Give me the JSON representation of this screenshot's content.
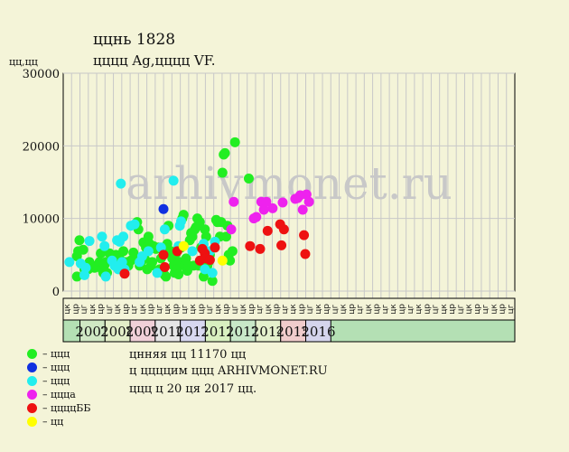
{
  "header": {
    "title": "ццнь 1828",
    "subtitle": "цццц Ag,цццц VF.",
    "y_unit": "цц,цц"
  },
  "notes": {
    "line1": "цнняя цц 11170 цц",
    "line2": "ц ццццим ццц ARHIVMONET.RU",
    "line3": "ццц ц 20 ця 2017 цц."
  },
  "watermark": "arhivmonet.ru",
  "legend": [
    {
      "label": "– ццц",
      "color": "#22ee22"
    },
    {
      "label": "– ццц",
      "color": "#1030e0"
    },
    {
      "label": "– ццц",
      "color": "#22eeee"
    },
    {
      "label": "– цццa",
      "color": "#ee22ee"
    },
    {
      "label": "– ццццББ",
      "color": "#ee1111"
    },
    {
      "label": "– цц",
      "color": "#ffff00"
    }
  ],
  "chart_data": {
    "type": "scatter",
    "ylim": [
      0,
      30000
    ],
    "y_ticks": [
      "0",
      "10000",
      "20000",
      "30000"
    ],
    "quarter_labels": [
      "цк",
      "цр",
      "цг",
      "цк",
      "цр",
      "цг",
      "цк",
      "цр",
      "цг",
      "цк",
      "цр",
      "цг",
      "цк",
      "цр",
      "цг",
      "цк",
      "цр",
      "цг",
      "цк",
      "цр",
      "цг",
      "цк",
      "цр",
      "цг",
      "цк",
      "цр",
      "цг",
      "цк",
      "цр",
      "цг",
      "цк",
      "цр",
      "цг",
      "цк",
      "цр",
      "цг",
      "цк",
      "цр",
      "цг",
      "цк",
      "цр",
      "цг",
      "цк",
      "цр",
      "цг",
      "цк",
      "цр",
      "цг",
      "цк",
      "цр",
      "цг",
      "цк",
      "цр",
      "цг"
    ],
    "years": [
      {
        "label": "2007",
        "color": "#cfe8c4"
      },
      {
        "label": "2008",
        "color": "#e2eec8"
      },
      {
        "label": "2009",
        "color": "#f0d0d8"
      },
      {
        "label": "2010",
        "color": "#e6e6e6"
      },
      {
        "label": "2011",
        "color": "#d8d8f0"
      },
      {
        "label": "2012",
        "color": "#d8f0c0"
      },
      {
        "label": "2013",
        "color": "#c8e8c8"
      },
      {
        "label": "2014",
        "color": "#e4f0cc"
      },
      {
        "label": "2015",
        "color": "#f0cccc"
      },
      {
        "label": "2016",
        "color": "#d4d4ec"
      }
    ],
    "grid": true,
    "series": [
      {
        "color": "#22ee22",
        "points": [
          [
            2006.55,
            2000
          ],
          [
            2006.55,
            4800
          ],
          [
            2006.6,
            5500
          ],
          [
            2006.65,
            7000
          ],
          [
            2006.8,
            5700
          ],
          [
            2006.85,
            3000
          ],
          [
            2007.0,
            3000
          ],
          [
            2007.05,
            4000
          ],
          [
            2007.15,
            3500
          ],
          [
            2007.25,
            3200
          ],
          [
            2007.35,
            3500
          ],
          [
            2007.45,
            4000
          ],
          [
            2007.5,
            5200
          ],
          [
            2007.55,
            3000
          ],
          [
            2007.6,
            2500
          ],
          [
            2007.65,
            3600
          ],
          [
            2007.7,
            4000
          ],
          [
            2007.75,
            2500
          ],
          [
            2007.85,
            5200
          ],
          [
            2008.0,
            4200
          ],
          [
            2008.1,
            5000
          ],
          [
            2008.15,
            3500
          ],
          [
            2008.25,
            4500
          ],
          [
            2008.4,
            5500
          ],
          [
            2008.5,
            4000
          ],
          [
            2008.6,
            3500
          ],
          [
            2008.7,
            4200
          ],
          [
            2008.8,
            5300
          ],
          [
            2008.9,
            4500
          ],
          [
            2008.95,
            9500
          ],
          [
            2009.0,
            8500
          ],
          [
            2009.05,
            3500
          ],
          [
            2009.15,
            4200
          ],
          [
            2009.2,
            6700
          ],
          [
            2009.25,
            4500
          ],
          [
            2009.3,
            6000
          ],
          [
            2009.35,
            3000
          ],
          [
            2009.4,
            7500
          ],
          [
            2009.45,
            6500
          ],
          [
            2009.5,
            3500
          ],
          [
            2009.55,
            4000
          ],
          [
            2009.6,
            6200
          ],
          [
            2009.7,
            5800
          ],
          [
            2009.8,
            6000
          ],
          [
            2009.85,
            3000
          ],
          [
            2009.9,
            4500
          ],
          [
            2010.0,
            5500
          ],
          [
            2010.05,
            2200
          ],
          [
            2010.1,
            2000
          ],
          [
            2010.15,
            6500
          ],
          [
            2010.2,
            9000
          ],
          [
            2010.3,
            5500
          ],
          [
            2010.35,
            4500
          ],
          [
            2010.4,
            3500
          ],
          [
            2010.45,
            2500
          ],
          [
            2010.5,
            5200
          ],
          [
            2010.55,
            3000
          ],
          [
            2010.6,
            2300
          ],
          [
            2010.65,
            4000
          ],
          [
            2010.7,
            6000
          ],
          [
            2010.75,
            10000
          ],
          [
            2010.8,
            10500
          ],
          [
            2010.85,
            3500
          ],
          [
            2010.9,
            4500
          ],
          [
            2010.95,
            2800
          ],
          [
            2011.0,
            3500
          ],
          [
            2011.05,
            7000
          ],
          [
            2011.1,
            8000
          ],
          [
            2011.15,
            7500
          ],
          [
            2011.2,
            3500
          ],
          [
            2011.25,
            8500
          ],
          [
            2011.3,
            8800
          ],
          [
            2011.35,
            10000
          ],
          [
            2011.4,
            3500
          ],
          [
            2011.45,
            9500
          ],
          [
            2011.5,
            6000
          ],
          [
            2011.55,
            3800
          ],
          [
            2011.6,
            2000
          ],
          [
            2011.65,
            8500
          ],
          [
            2011.7,
            7500
          ],
          [
            2011.75,
            3500
          ],
          [
            2011.8,
            4000
          ],
          [
            2011.85,
            5000
          ],
          [
            2011.95,
            1400
          ],
          [
            2012.1,
            9800
          ],
          [
            2012.15,
            9500
          ],
          [
            2012.25,
            7500
          ],
          [
            2012.3,
            9500
          ],
          [
            2012.35,
            16300
          ],
          [
            2012.4,
            18800
          ],
          [
            2012.45,
            19000
          ],
          [
            2012.5,
            7500
          ],
          [
            2012.55,
            9000
          ],
          [
            2012.6,
            5000
          ],
          [
            2012.65,
            4200
          ],
          [
            2012.75,
            5500
          ],
          [
            2012.85,
            20500
          ],
          [
            2013.4,
            15500
          ]
        ]
      },
      {
        "color": "#1030e0",
        "points": [
          [
            2010.0,
            11300
          ]
        ]
      },
      {
        "color": "#22eeee",
        "points": [
          [
            2006.25,
            4000
          ],
          [
            2006.7,
            3800
          ],
          [
            2006.85,
            2200
          ],
          [
            2006.9,
            3200
          ],
          [
            2007.05,
            6900
          ],
          [
            2007.55,
            7500
          ],
          [
            2007.65,
            6200
          ],
          [
            2007.7,
            2000
          ],
          [
            2007.95,
            4200
          ],
          [
            2008.05,
            3500
          ],
          [
            2008.15,
            7000
          ],
          [
            2008.2,
            3000
          ],
          [
            2008.25,
            6800
          ],
          [
            2008.3,
            14800
          ],
          [
            2008.35,
            4000
          ],
          [
            2008.4,
            7500
          ],
          [
            2008.45,
            3000
          ],
          [
            2008.7,
            9000
          ],
          [
            2008.85,
            9200
          ],
          [
            2009.05,
            4000
          ],
          [
            2009.15,
            4800
          ],
          [
            2009.4,
            5500
          ],
          [
            2009.75,
            2500
          ],
          [
            2009.9,
            6000
          ],
          [
            2010.05,
            8500
          ],
          [
            2010.4,
            15200
          ],
          [
            2010.6,
            6200
          ],
          [
            2010.65,
            9000
          ],
          [
            2010.7,
            9600
          ],
          [
            2011.15,
            5500
          ],
          [
            2011.6,
            6500
          ],
          [
            2011.65,
            3000
          ],
          [
            2011.85,
            5500
          ],
          [
            2011.95,
            2500
          ],
          [
            2012.05,
            6800
          ]
        ]
      },
      {
        "color": "#ee22ee",
        "points": [
          [
            2012.7,
            8500
          ],
          [
            2012.8,
            12300
          ],
          [
            2013.6,
            10000
          ],
          [
            2013.7,
            10200
          ],
          [
            2013.9,
            12300
          ],
          [
            2014.0,
            11200
          ],
          [
            2014.1,
            12300
          ],
          [
            2014.35,
            11400
          ],
          [
            2014.75,
            12200
          ],
          [
            2015.25,
            12700
          ],
          [
            2015.35,
            12800
          ],
          [
            2015.45,
            13200
          ],
          [
            2015.55,
            11200
          ],
          [
            2015.7,
            13300
          ],
          [
            2015.8,
            12300
          ]
        ]
      },
      {
        "color": "#ee1111",
        "points": [
          [
            2008.45,
            2400
          ],
          [
            2010.0,
            5000
          ],
          [
            2010.05,
            3300
          ],
          [
            2010.55,
            5500
          ],
          [
            2011.45,
            4200
          ],
          [
            2011.55,
            5800
          ],
          [
            2011.65,
            5200
          ],
          [
            2011.7,
            4500
          ],
          [
            2011.85,
            4300
          ],
          [
            2012.05,
            6000
          ],
          [
            2013.45,
            6200
          ],
          [
            2013.85,
            5800
          ],
          [
            2014.15,
            8300
          ],
          [
            2014.65,
            9200
          ],
          [
            2014.7,
            6300
          ],
          [
            2014.8,
            8500
          ],
          [
            2015.6,
            7700
          ],
          [
            2015.65,
            5100
          ]
        ]
      },
      {
        "color": "#ffff00",
        "points": [
          [
            2010.8,
            6200
          ],
          [
            2012.35,
            4200
          ]
        ]
      }
    ]
  }
}
